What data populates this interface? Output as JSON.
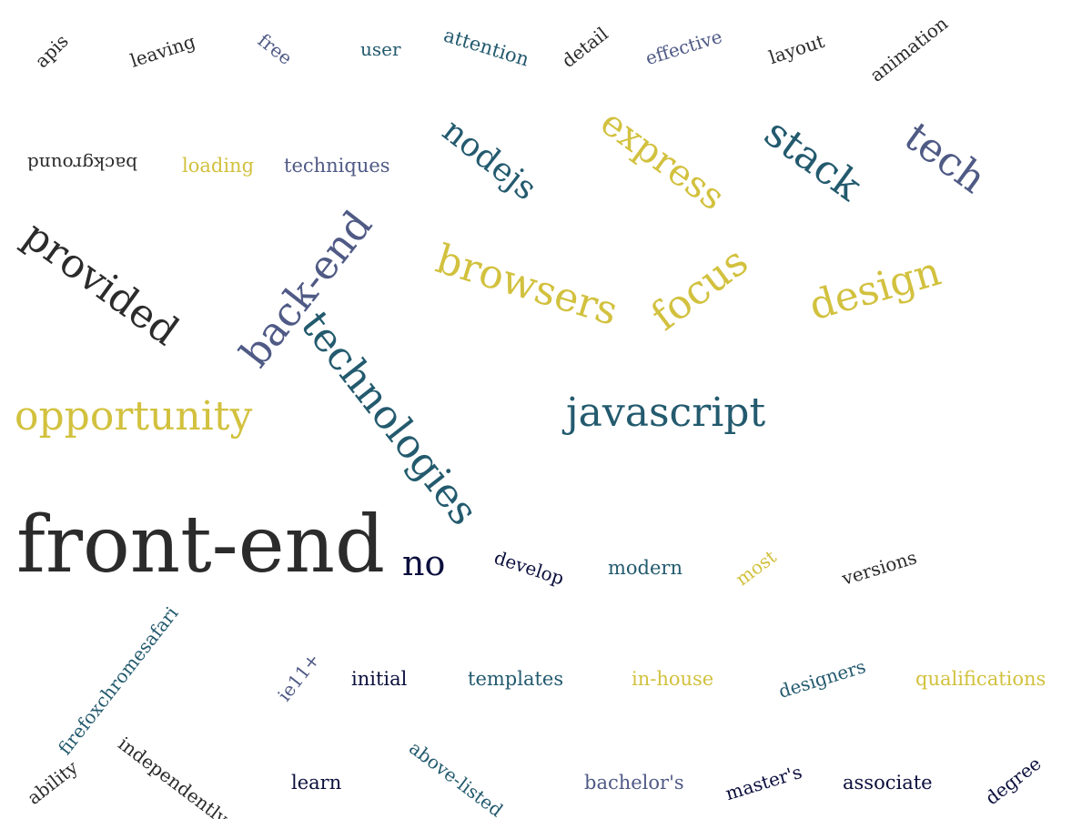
{
  "colors": {
    "black": "#2b2b2b",
    "navy": "#0b0f3d",
    "teal": "#235a6e",
    "slate": "#4f5a85",
    "yellow": "#d2c13e"
  },
  "words": [
    {
      "text": "apis",
      "color": "#2b2b2b"
    },
    {
      "text": "leaving",
      "color": "#2b2b2b"
    },
    {
      "text": "free",
      "color": "#4f5a85"
    },
    {
      "text": "user",
      "color": "#235a6e"
    },
    {
      "text": "attention",
      "color": "#235a6e"
    },
    {
      "text": "detail",
      "color": "#2b2b2b"
    },
    {
      "text": "effective",
      "color": "#4f5a85"
    },
    {
      "text": "layout",
      "color": "#2b2b2b"
    },
    {
      "text": "animation",
      "color": "#2b2b2b"
    },
    {
      "text": "background",
      "color": "#2b2b2b"
    },
    {
      "text": "loading",
      "color": "#d2c13e"
    },
    {
      "text": "techniques",
      "color": "#4f5a85"
    },
    {
      "text": "nodejs",
      "color": "#235a6e"
    },
    {
      "text": "express",
      "color": "#d2c13e"
    },
    {
      "text": "stack",
      "color": "#235a6e"
    },
    {
      "text": "tech",
      "color": "#4f5a85"
    },
    {
      "text": "provided",
      "color": "#2b2b2b"
    },
    {
      "text": "back-end",
      "color": "#4f5a85"
    },
    {
      "text": "browsers",
      "color": "#d2c13e"
    },
    {
      "text": "focus",
      "color": "#d2c13e"
    },
    {
      "text": "design",
      "color": "#d2c13e"
    },
    {
      "text": "technologies",
      "color": "#235a6e"
    },
    {
      "text": "opportunity",
      "color": "#d2c13e"
    },
    {
      "text": "javascript",
      "color": "#235a6e"
    },
    {
      "text": "front-end",
      "color": "#2b2b2b"
    },
    {
      "text": "no",
      "color": "#0b0f3d"
    },
    {
      "text": "develop",
      "color": "#0b0f3d"
    },
    {
      "text": "modern",
      "color": "#235a6e"
    },
    {
      "text": "most",
      "color": "#d2c13e"
    },
    {
      "text": "versions",
      "color": "#2b2b2b"
    },
    {
      "text": "firefoxchromesafari",
      "color": "#235a6e"
    },
    {
      "text": "ie11+",
      "color": "#4f5a85"
    },
    {
      "text": "initial",
      "color": "#0b0f3d"
    },
    {
      "text": "templates",
      "color": "#235a6e"
    },
    {
      "text": "in-house",
      "color": "#d2c13e"
    },
    {
      "text": "designers",
      "color": "#235a6e"
    },
    {
      "text": "qualifications",
      "color": "#d2c13e"
    },
    {
      "text": "ability",
      "color": "#2b2b2b"
    },
    {
      "text": "independently",
      "color": "#2b2b2b"
    },
    {
      "text": "learn",
      "color": "#0b0f3d"
    },
    {
      "text": "above-listed",
      "color": "#235a6e"
    },
    {
      "text": "bachelor's",
      "color": "#4f5a85"
    },
    {
      "text": "master's",
      "color": "#0b0f3d"
    },
    {
      "text": "associate",
      "color": "#0b0f3d"
    },
    {
      "text": "degree",
      "color": "#0b0f3d"
    }
  ]
}
